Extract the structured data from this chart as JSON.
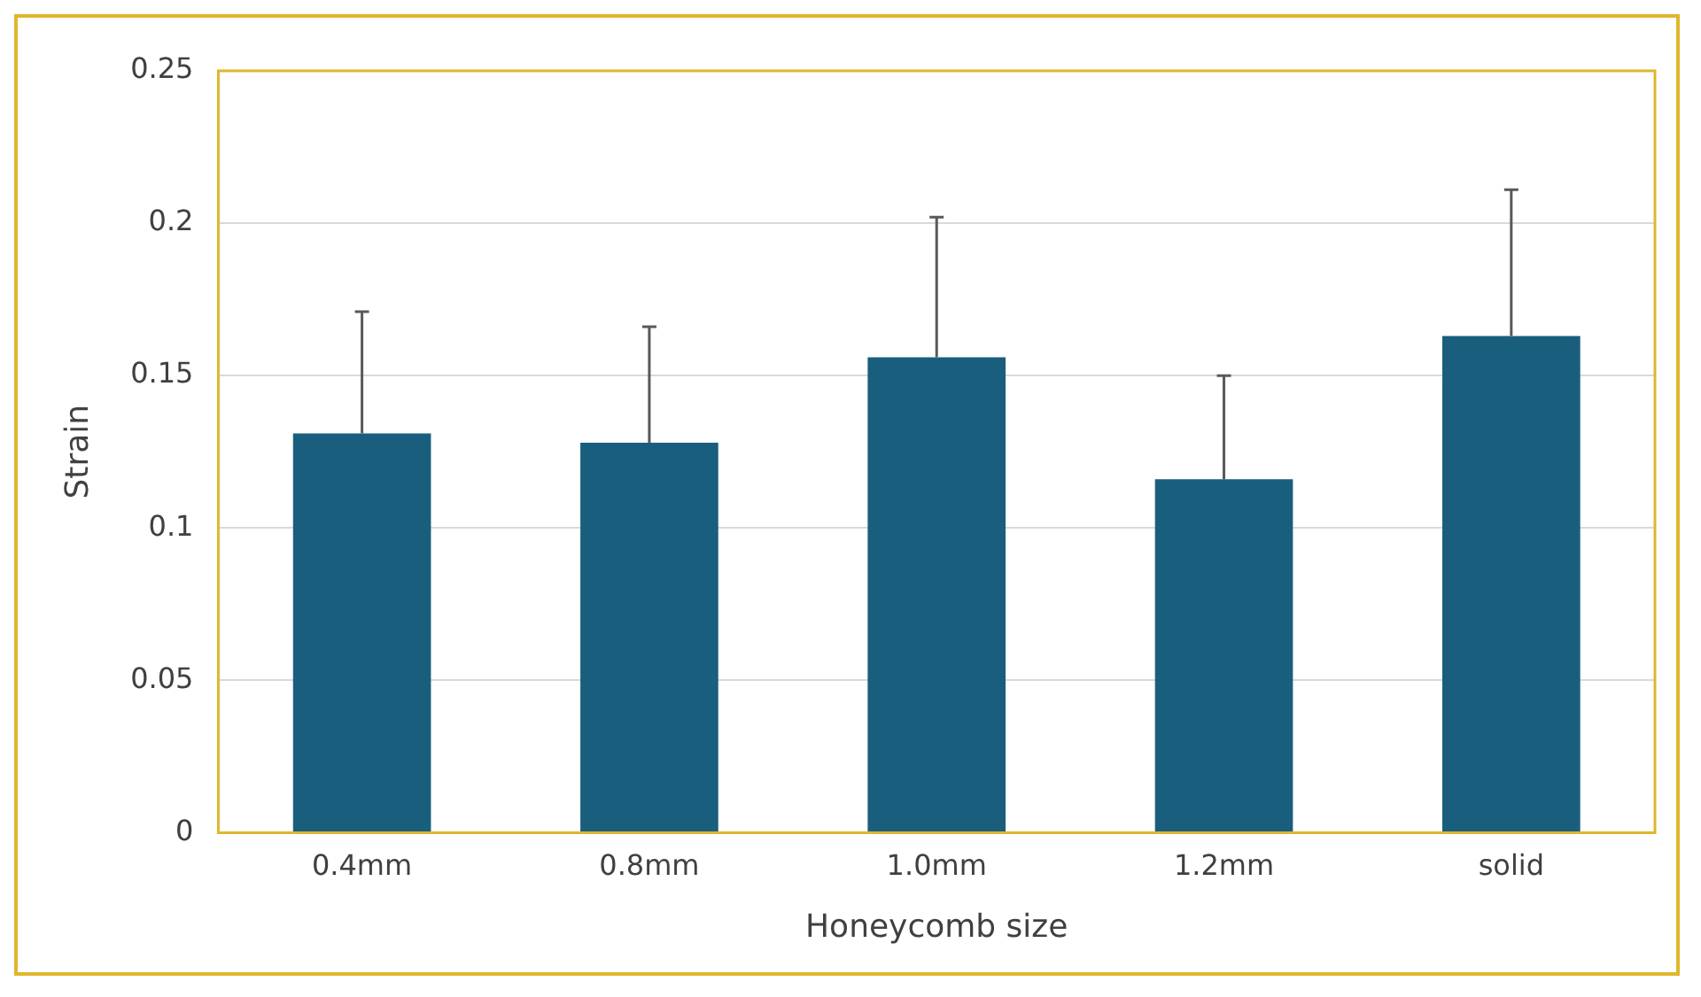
{
  "chart_data": {
    "type": "bar",
    "xlabel": "Honeycomb size",
    "ylabel": "Strain",
    "categories": [
      "0.4mm",
      "0.8mm",
      "1.0mm",
      "1.2mm",
      "solid"
    ],
    "values": [
      0.131,
      0.128,
      0.156,
      0.116,
      0.163
    ],
    "errors": [
      [
        0.131,
        0.171
      ],
      [
        0.128,
        0.166
      ],
      [
        0.156,
        0.202
      ],
      [
        0.116,
        0.15
      ],
      [
        0.163,
        0.211
      ]
    ],
    "color": "#1a5e7e",
    "ylim": [
      0,
      0.25
    ],
    "yticks": [
      0,
      0.05,
      0.1,
      0.15,
      0.2,
      0.25
    ],
    "grid": "y",
    "legend": false
  }
}
